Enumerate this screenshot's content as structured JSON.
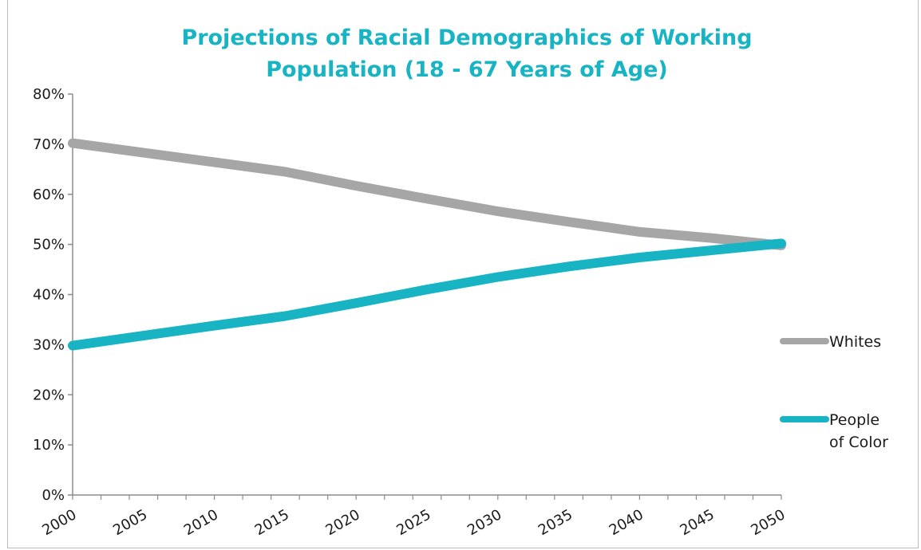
{
  "chart_data": {
    "type": "line",
    "title_lines": [
      "Projections of Racial Demographics of Working",
      "Population (18 - 67 Years of Age)"
    ],
    "x": [
      2000,
      2005,
      2010,
      2015,
      2020,
      2025,
      2030,
      2035,
      2040,
      2045,
      2050
    ],
    "x_tick_labels": [
      "2000",
      "2005",
      "2010",
      "2015",
      "2020",
      "2025",
      "2030",
      "2035",
      "2040",
      "2045",
      "2050"
    ],
    "y_tick_values": [
      0,
      10,
      20,
      30,
      40,
      50,
      60,
      70,
      80
    ],
    "y_tick_labels": [
      "0%",
      "10%",
      "20%",
      "30%",
      "40%",
      "50%",
      "60%",
      "70%",
      "80%"
    ],
    "ylim": [
      0,
      80
    ],
    "grid": false,
    "legend_position": "right",
    "series": [
      {
        "name": "Whites",
        "color": "#a6a6a6",
        "values": [
          70.2,
          68.3,
          66.4,
          64.5,
          61.7,
          59.1,
          56.6,
          54.5,
          52.5,
          51.3,
          49.8
        ]
      },
      {
        "name": "People of Color",
        "name_lines": [
          "People",
          "of Color"
        ],
        "color": "#18b4c4",
        "values": [
          29.8,
          31.8,
          33.8,
          35.7,
          38.3,
          41.0,
          43.5,
          45.6,
          47.4,
          48.8,
          50.2
        ]
      }
    ]
  }
}
